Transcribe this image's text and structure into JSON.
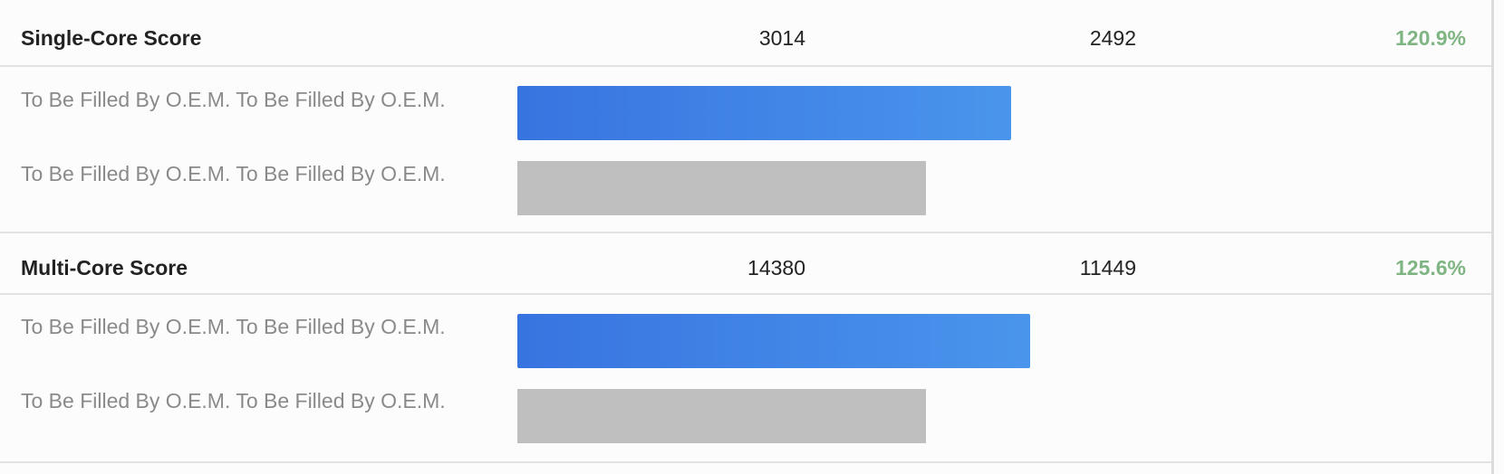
{
  "rows": [
    {
      "title": "Single-Core Score",
      "score_a": "3014",
      "score_b": "2492",
      "percent": "120.9%",
      "value_a": 3014,
      "value_b": 2492,
      "label_a": "To Be Filled By O.E.M. To Be Filled By O.E.M.",
      "label_b": "To Be Filled By O.E.M. To Be Filled By O.E.M."
    },
    {
      "title": "Multi-Core Score",
      "score_a": "14380",
      "score_b": "11449",
      "percent": "125.6%",
      "value_a": 14380,
      "value_b": 11449,
      "label_a": "To Be Filled By O.E.M. To Be Filled By O.E.M.",
      "label_b": "To Be Filled By O.E.M. To Be Filled By O.E.M."
    }
  ],
  "colors": {
    "bar_primary": "#3874e0",
    "bar_secondary": "#bfbfbf",
    "percent": "#7fb583"
  }
}
